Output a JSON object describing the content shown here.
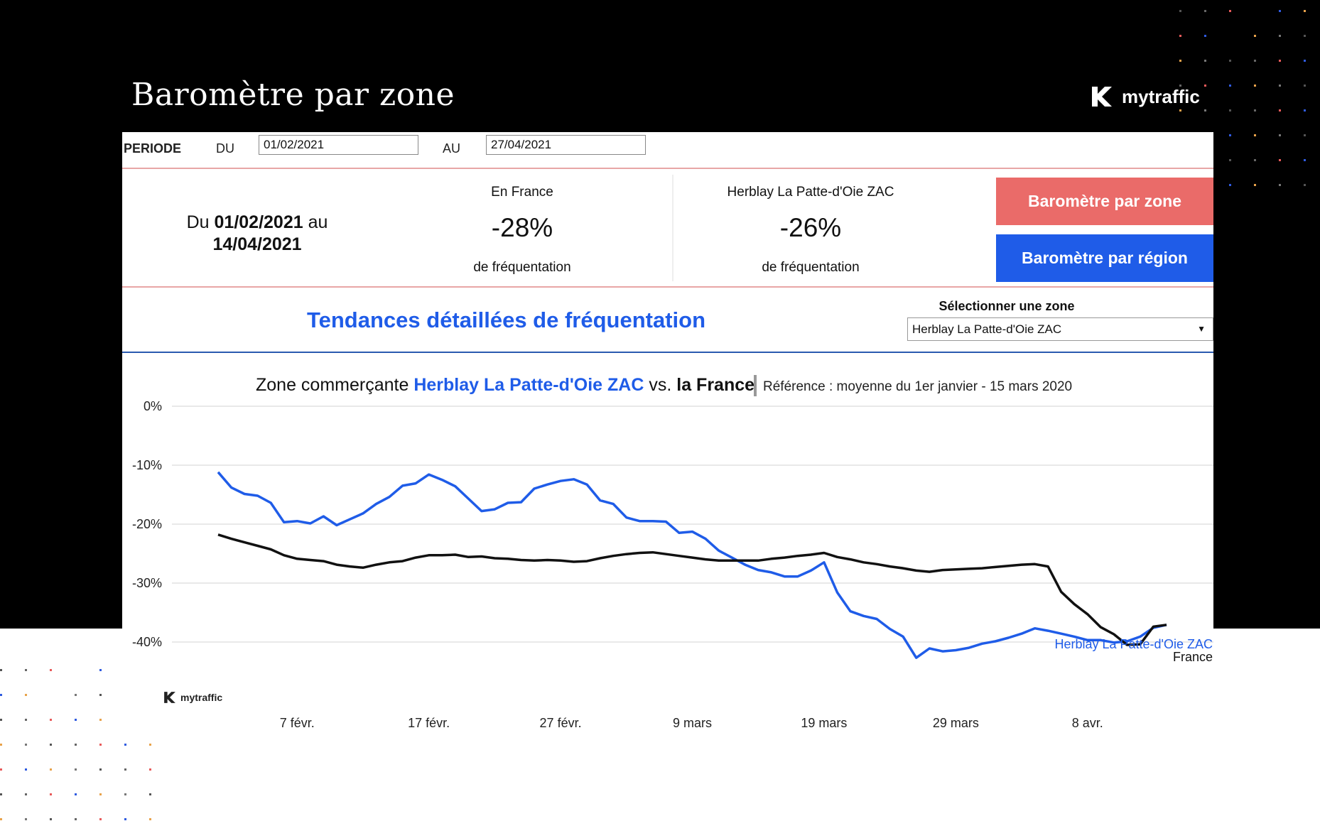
{
  "header": {
    "title": "Baromètre par zone",
    "logo_text": "mytraffic"
  },
  "period": {
    "label": "PERIODE",
    "from_label": "DU",
    "from_value": "01/02/2021",
    "to_label": "AU",
    "to_value": "27/04/2021"
  },
  "summary": {
    "range_prefix": "Du",
    "range_start": "01/02/2021",
    "range_mid": "au",
    "range_end": "14/04/2021",
    "france": {
      "title": "En France",
      "value": "-28%",
      "sub": "de fréquentation"
    },
    "zone": {
      "title": "Herblay La Patte-d'Oie ZAC",
      "value": "-26%",
      "sub": "de fréquentation"
    }
  },
  "buttons": {
    "zone": "Baromètre par zone",
    "region": "Baromètre par région"
  },
  "trends": {
    "title": "Tendances détaillées de fréquentation",
    "select_label": "Sélectionner une zone",
    "select_value": "Herblay La Patte-d'Oie ZAC"
  },
  "chart_heading": {
    "prefix": "Zone commerçante",
    "zone": "Herblay La Patte-d'Oie ZAC",
    "vs": "vs.",
    "france": "la France",
    "reference": "Référence : moyenne du 1er janvier - 15 mars 2020"
  },
  "chart_logo": "mytraffic",
  "colors": {
    "zone": "#1f5ce8",
    "france": "#111111",
    "accent_red": "#ea6b69"
  },
  "chart_data": {
    "type": "line",
    "x_start": "2021-02-01",
    "x_end": "2021-04-14",
    "xlabel": "",
    "ylabel": "",
    "ylim": [
      -43,
      1
    ],
    "y_ticks": [
      "0%",
      "-10%",
      "-20%",
      "-30%",
      "-40%"
    ],
    "y_tick_values": [
      0,
      -10,
      -20,
      -30,
      -40
    ],
    "x_ticks": [
      "7 févr.",
      "17 févr.",
      "27 févr.",
      "9 mars",
      "19 mars",
      "29 mars",
      "8 avr."
    ],
    "x_tick_dates": [
      "2021-02-07",
      "2021-02-17",
      "2021-02-27",
      "2021-03-09",
      "2021-03-19",
      "2021-03-29",
      "2021-04-08"
    ],
    "grid": true,
    "series": [
      {
        "name": "Herblay La Patte-d'Oie ZAC",
        "color": "#1f5ce8",
        "values": [
          -11.3,
          -13.9,
          -15.0,
          -15.3,
          -16.5,
          -19.8,
          -19.6,
          -20.0,
          -18.8,
          -20.3,
          -19.3,
          -18.3,
          -16.7,
          -15.5,
          -13.6,
          -13.2,
          -11.7,
          -12.6,
          -13.7,
          -15.8,
          -17.9,
          -17.6,
          -16.5,
          -16.4,
          -14.1,
          -13.4,
          -12.8,
          -12.5,
          -13.4,
          -16.1,
          -16.7,
          -19.0,
          -19.6,
          -19.6,
          -19.7,
          -21.6,
          -21.4,
          -22.6,
          -24.6,
          -25.8,
          -27.0,
          -27.9,
          -28.3,
          -29.0,
          -29.0,
          -28.0,
          -26.6,
          -31.7,
          -34.9,
          -35.7,
          -36.2,
          -37.9,
          -39.2,
          -42.8,
          -41.2,
          -41.7,
          -41.5,
          -41.1,
          -40.4,
          -40.0,
          -39.4,
          -38.7,
          -37.8,
          -38.2,
          -38.7,
          -39.2,
          -39.8,
          -39.8,
          -40.2,
          -40.0,
          -39.2,
          -37.7,
          -37.2
        ]
      },
      {
        "name": "France",
        "color": "#111111",
        "values": [
          -21.9,
          -22.6,
          -23.2,
          -23.8,
          -24.4,
          -25.4,
          -26.0,
          -26.2,
          -26.4,
          -27.0,
          -27.3,
          -27.5,
          -27.0,
          -26.6,
          -26.4,
          -25.8,
          -25.4,
          -25.4,
          -25.3,
          -25.7,
          -25.6,
          -25.9,
          -26.0,
          -26.2,
          -26.3,
          -26.2,
          -26.3,
          -26.5,
          -26.4,
          -25.9,
          -25.5,
          -25.2,
          -25.0,
          -24.9,
          -25.2,
          -25.5,
          -25.8,
          -26.1,
          -26.3,
          -26.3,
          -26.3,
          -26.3,
          -26.0,
          -25.8,
          -25.5,
          -25.3,
          -25.0,
          -25.7,
          -26.1,
          -26.6,
          -26.9,
          -27.3,
          -27.6,
          -28.0,
          -28.2,
          -27.9,
          -27.8,
          -27.7,
          -27.6,
          -27.4,
          -27.2,
          -27.0,
          -26.9,
          -27.3,
          -31.6,
          -33.7,
          -35.4,
          -37.6,
          -38.8,
          -40.6,
          -40.5,
          -37.5,
          -37.2
        ]
      }
    ]
  }
}
